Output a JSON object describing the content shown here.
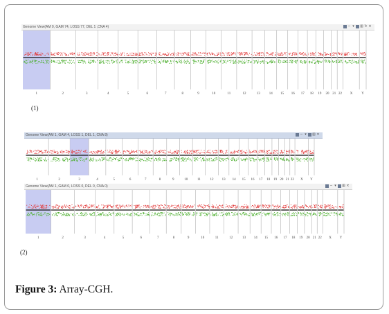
{
  "windows": [
    {
      "title": "Genome View(AM 0, GAM 74, LOSS 77, DEL 1 ,CNA 4)",
      "titlebar": "gray",
      "chromosomes": [
        "1",
        "2",
        "3",
        "4",
        "5",
        "6",
        "7",
        "8",
        "9",
        "10",
        "11",
        "12",
        "13",
        "14",
        "15",
        "16",
        "17",
        "18",
        "19",
        "20",
        "21",
        "22",
        "X",
        "Y"
      ],
      "highlight_chromosome": "1",
      "caption": "(1)"
    },
    {
      "title": "Genome View(AM 1, GAM 4, LOSS 1, DEL 1, CNA 8)",
      "titlebar": "blue",
      "chromosomes": [
        "1",
        "2",
        "3",
        "4",
        "5",
        "6",
        "7",
        "8",
        "9",
        "10",
        "11",
        "12",
        "13",
        "14",
        "15",
        "16",
        "17",
        "18",
        "19",
        "20",
        "21",
        "22",
        "X",
        "Y"
      ],
      "highlight_chromosome": "3",
      "caption": ""
    },
    {
      "title": "Genome View(AM 1, GAM 0, LOSS 0, DEL 0, CNA 0)",
      "titlebar": "gray",
      "chromosomes": [
        "1",
        "2",
        "3",
        "4",
        "5",
        "6",
        "7",
        "8",
        "9",
        "10",
        "11",
        "12",
        "13",
        "14",
        "15",
        "16",
        "17",
        "18",
        "19",
        "20",
        "21",
        "22",
        "X",
        "Y"
      ],
      "highlight_chromosome": "1",
      "caption": "(2)"
    }
  ],
  "toolbar_icons": [
    "grid-icon",
    "minus-icon",
    "filter-icon",
    "settings-icon",
    "chart-icon",
    "refresh-icon",
    "expand-icon",
    "close-icon"
  ],
  "colors": {
    "gain": "#e23a3a",
    "loss": "#4caf2e",
    "baseline": "#111111",
    "highlight": "#c8ccf2",
    "divider": "#a0a0a0"
  },
  "figure": {
    "label": "Figure 3:",
    "text": "Array-CGH."
  }
}
